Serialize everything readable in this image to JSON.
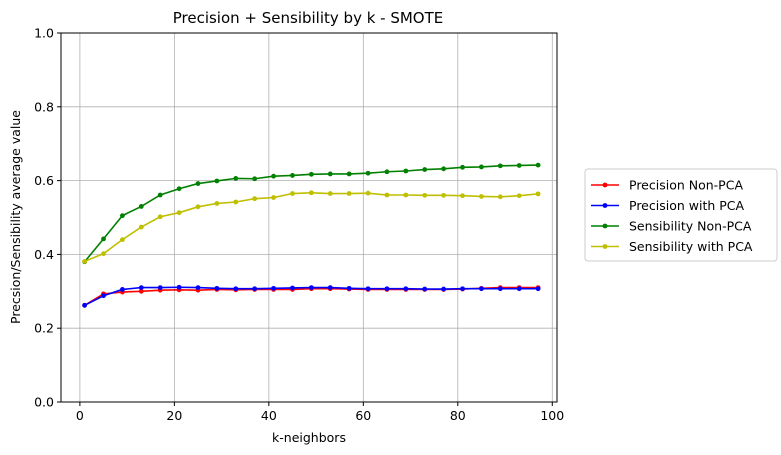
{
  "chart_data": {
    "type": "line",
    "title": "Precision + Sensibility by k - SMOTE",
    "xlabel": "k-neighbors",
    "ylabel": "Precsion/Sensibility average value",
    "xlim": [
      -4,
      101
    ],
    "ylim": [
      0,
      1
    ],
    "xticks": [
      0,
      20,
      40,
      60,
      80,
      100
    ],
    "yticks": [
      0.0,
      0.2,
      0.4,
      0.6,
      0.8,
      1.0
    ],
    "ytick_labels": [
      "0.0",
      "0.2",
      "0.4",
      "0.6",
      "0.8",
      "1.0"
    ],
    "grid": true,
    "legend_position": "right, outside plot",
    "x": [
      1,
      5,
      9,
      13,
      17,
      21,
      25,
      29,
      33,
      37,
      41,
      45,
      49,
      53,
      57,
      61,
      65,
      69,
      73,
      77,
      81,
      85,
      89,
      93,
      97
    ],
    "series": [
      {
        "name": "Precision Non-PCA",
        "color": "#ff0000",
        "values": [
          0.262,
          0.293,
          0.298,
          0.3,
          0.303,
          0.304,
          0.303,
          0.305,
          0.304,
          0.305,
          0.305,
          0.305,
          0.307,
          0.307,
          0.306,
          0.305,
          0.305,
          0.305,
          0.305,
          0.305,
          0.306,
          0.308,
          0.31,
          0.31,
          0.31
        ]
      },
      {
        "name": "Precision with PCA",
        "color": "#0000ff",
        "values": [
          0.262,
          0.288,
          0.305,
          0.31,
          0.31,
          0.311,
          0.31,
          0.308,
          0.307,
          0.307,
          0.308,
          0.309,
          0.31,
          0.31,
          0.308,
          0.307,
          0.307,
          0.307,
          0.306,
          0.306,
          0.307,
          0.307,
          0.307,
          0.307,
          0.307
        ]
      },
      {
        "name": "Sensibility Non-PCA",
        "color": "#008000",
        "values": [
          0.38,
          0.442,
          0.505,
          0.53,
          0.561,
          0.578,
          0.592,
          0.599,
          0.606,
          0.605,
          0.612,
          0.614,
          0.617,
          0.618,
          0.618,
          0.62,
          0.624,
          0.626,
          0.63,
          0.632,
          0.636,
          0.637,
          0.64,
          0.641,
          0.642
        ]
      },
      {
        "name": "Sensibility with PCA",
        "color": "#bfbf00",
        "values": [
          0.381,
          0.402,
          0.44,
          0.474,
          0.502,
          0.513,
          0.529,
          0.538,
          0.542,
          0.551,
          0.554,
          0.565,
          0.567,
          0.565,
          0.565,
          0.566,
          0.561,
          0.561,
          0.56,
          0.56,
          0.559,
          0.557,
          0.556,
          0.559,
          0.564
        ]
      }
    ]
  }
}
